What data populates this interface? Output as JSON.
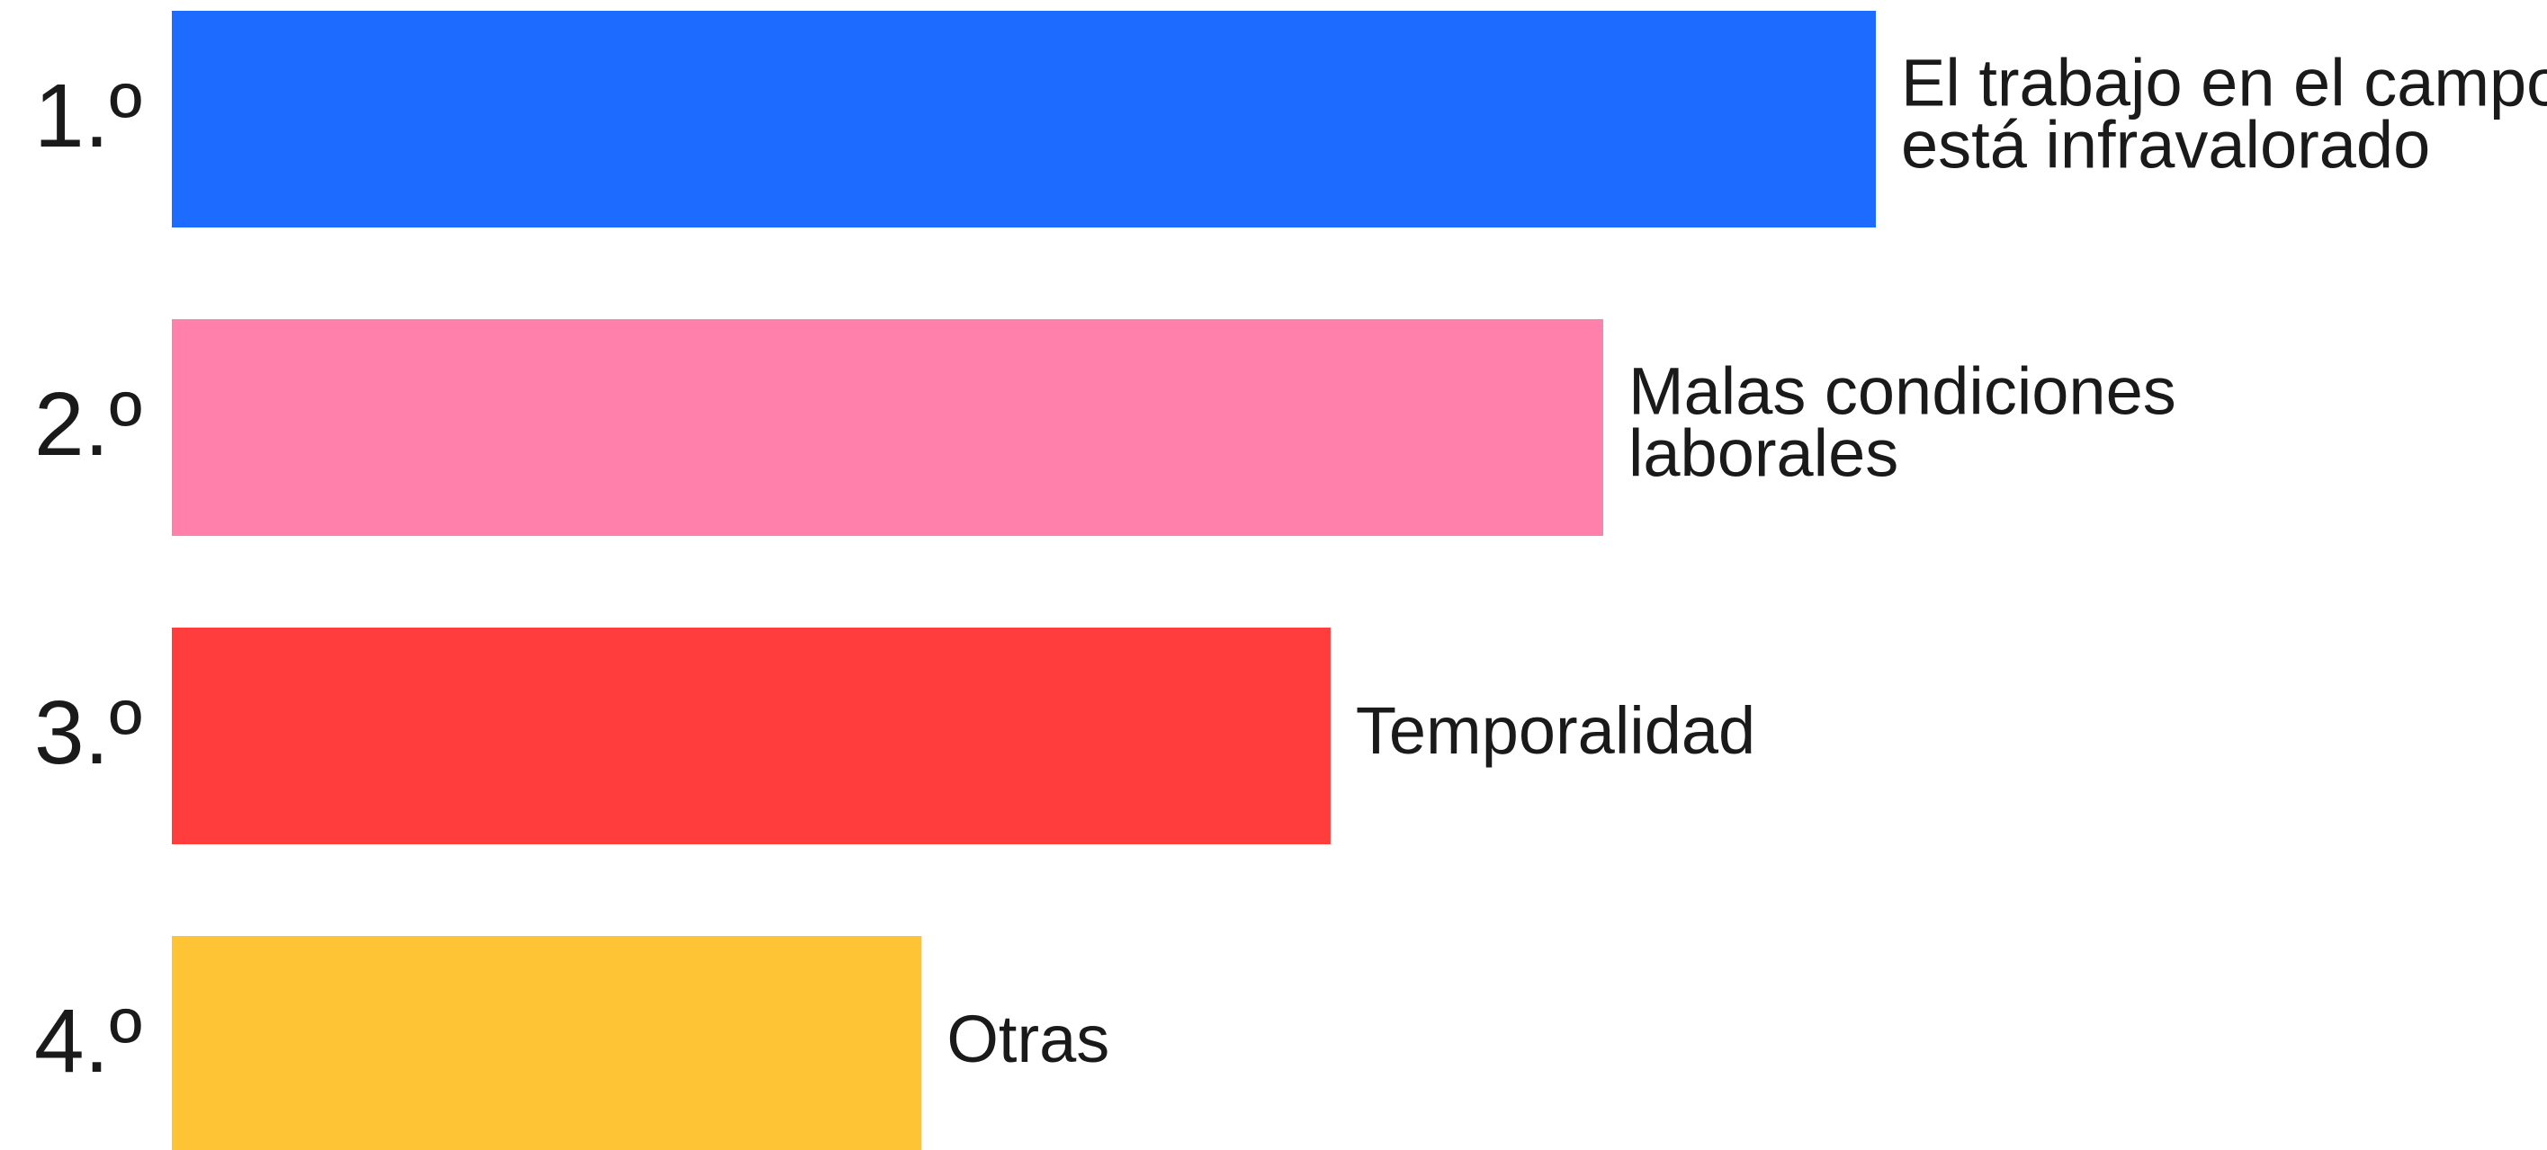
{
  "chart_data": {
    "type": "bar",
    "orientation": "horizontal",
    "categories": [
      "1.º",
      "2.º",
      "3.º",
      "4.º"
    ],
    "labels": [
      [
        "El trabajo en el campo",
        "está infravalorado"
      ],
      [
        "Malas condiciones",
        "laborales"
      ],
      [
        "Temporalidad"
      ],
      [
        "Otras"
      ]
    ],
    "values": [
      100,
      84,
      68,
      44
    ],
    "colors": [
      "#1e6bff",
      "#ff80aa",
      "#ff3d3d",
      "#ffc336"
    ],
    "xlim": [
      0,
      100
    ]
  }
}
